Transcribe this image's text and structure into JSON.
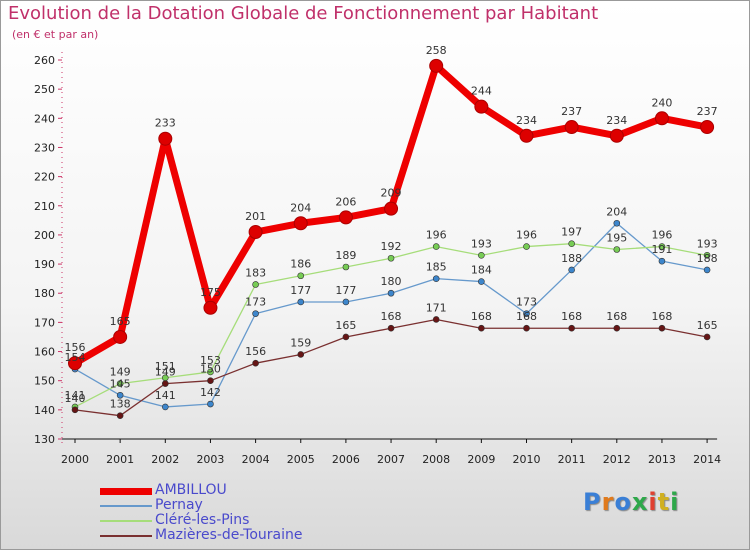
{
  "title": "Evolution de la Dotation Globale de Fonctionnement par Habitant",
  "subtitle": "(en € et par an)",
  "brand": {
    "text": "Proxiti",
    "colors": [
      "#3a7fd6",
      "#e07a1c",
      "#3a7fd6",
      "#2ea84a",
      "#e04030",
      "#d0b020",
      "#2ea84a"
    ]
  },
  "chart_data": {
    "type": "line",
    "title": "Evolution de la Dotation Globale de Fonctionnement par Habitant",
    "ylabel": "(en € et par an)",
    "xlabel": "",
    "x": [
      "2000",
      "2001",
      "2002",
      "2003",
      "2004",
      "2005",
      "2006",
      "2007",
      "2008",
      "2009",
      "2010",
      "2011",
      "2012",
      "2013",
      "2014"
    ],
    "ylim": [
      130,
      260
    ],
    "yticks": [
      130,
      140,
      150,
      160,
      170,
      180,
      190,
      200,
      210,
      220,
      230,
      240,
      250,
      260
    ],
    "grid": false,
    "legend_position": "bottom-left",
    "series": [
      {
        "name": "AMBILLOU",
        "color": "#ee0000",
        "marker_color": "#dd0000",
        "emphasis": "thick",
        "values": [
          156,
          165,
          233,
          175,
          201,
          204,
          206,
          209,
          258,
          244,
          234,
          237,
          234,
          240,
          237
        ]
      },
      {
        "name": "Pernay",
        "color": "#6699cc",
        "marker_color": "#3d86cc",
        "emphasis": "thin",
        "values": [
          154,
          145,
          141,
          142,
          173,
          177,
          177,
          180,
          185,
          184,
          173,
          188,
          204,
          191,
          188
        ]
      },
      {
        "name": "Cléré-les-Pins",
        "color": "#a6dd7a",
        "marker_color": "#77cc55",
        "emphasis": "thin",
        "values": [
          141,
          149,
          151,
          153,
          183,
          186,
          189,
          192,
          196,
          193,
          196,
          197,
          195,
          196,
          193
        ]
      },
      {
        "name": "Mazières-de-Touraine",
        "color": "#7a3030",
        "marker_color": "#661515",
        "emphasis": "thin",
        "values": [
          140,
          138,
          149,
          150,
          156,
          159,
          165,
          168,
          171,
          168,
          168,
          168,
          168,
          168,
          165
        ]
      }
    ]
  }
}
